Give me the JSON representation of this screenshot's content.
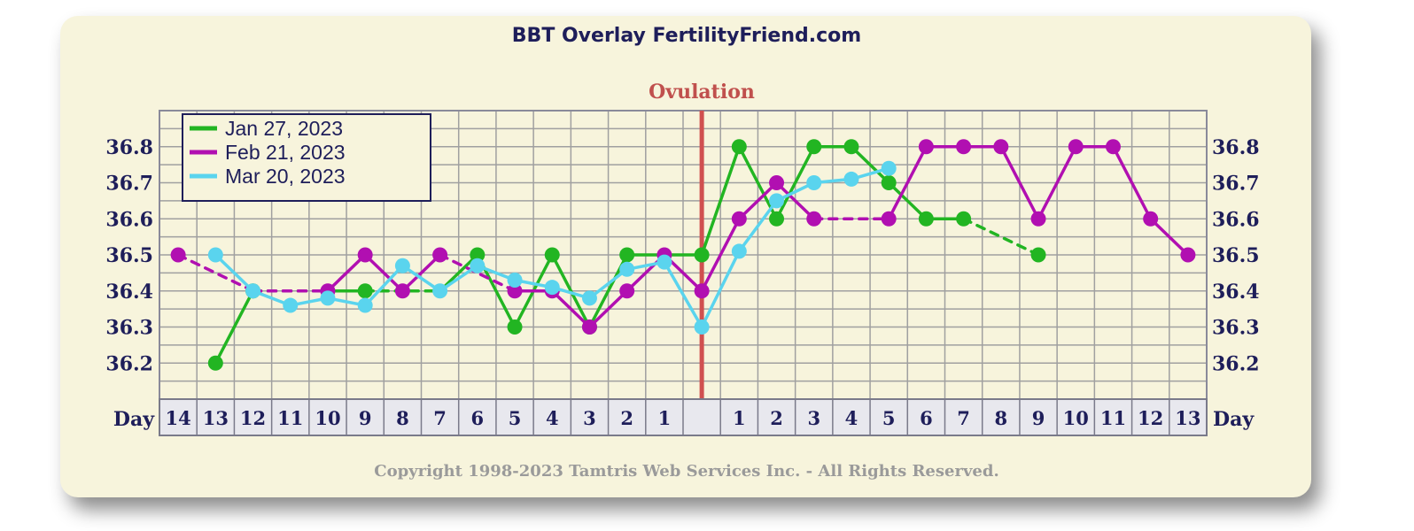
{
  "chart_data": {
    "type": "line",
    "title": "BBT Overlay FertilityFriend.com",
    "annotation": "Ovulation",
    "copyright": "Copyright 1998-2023 Tamtris Web Services Inc. - All Rights Reserved.",
    "ylim": [
      36.1,
      36.9
    ],
    "y_ticks": [
      "36.2",
      "36.3",
      "36.4",
      "36.5",
      "36.6",
      "36.7",
      "36.8"
    ],
    "day_axis_label": "Day",
    "day_labels": [
      "14",
      "13",
      "12",
      "11",
      "10",
      "9",
      "8",
      "7",
      "6",
      "5",
      "4",
      "3",
      "2",
      "1",
      "",
      "1",
      "2",
      "3",
      "4",
      "5",
      "6",
      "7",
      "8",
      "9",
      "10",
      "11",
      "12",
      "13"
    ],
    "ovulation_index": 14,
    "grid": true,
    "legend_position": "top-left",
    "series": [
      {
        "name": "Jan 27, 2023",
        "color": "#22b522",
        "values": [
          null,
          36.2,
          36.4,
          null,
          36.4,
          36.4,
          null,
          36.4,
          36.5,
          36.3,
          36.5,
          36.3,
          36.5,
          36.5,
          36.5,
          36.8,
          36.6,
          36.8,
          36.8,
          36.7,
          36.6,
          36.6,
          null,
          36.5,
          null,
          null,
          null,
          null
        ],
        "markers": [
          false,
          true,
          true,
          false,
          false,
          true,
          false,
          false,
          true,
          true,
          true,
          true,
          true,
          false,
          true,
          true,
          true,
          true,
          true,
          true,
          true,
          true,
          false,
          true,
          false,
          false,
          false,
          false
        ]
      },
      {
        "name": "Feb 21, 2023",
        "color": "#b10fb1",
        "values": [
          36.5,
          null,
          36.4,
          null,
          36.4,
          36.5,
          36.4,
          36.5,
          null,
          36.4,
          36.4,
          36.3,
          36.4,
          36.5,
          36.4,
          36.6,
          36.7,
          36.6,
          null,
          36.6,
          36.8,
          36.8,
          36.8,
          36.6,
          36.8,
          36.8,
          36.6,
          36.5
        ],
        "markers": [
          true,
          false,
          false,
          false,
          true,
          true,
          true,
          true,
          false,
          true,
          true,
          true,
          true,
          true,
          true,
          true,
          true,
          true,
          false,
          true,
          true,
          true,
          true,
          true,
          true,
          true,
          true,
          true
        ]
      },
      {
        "name": "Mar 20, 2023",
        "color": "#5ad4ee",
        "values": [
          null,
          36.5,
          36.4,
          36.36,
          36.38,
          36.36,
          36.47,
          36.4,
          36.47,
          36.43,
          36.41,
          36.38,
          36.46,
          36.48,
          36.3,
          36.51,
          36.65,
          36.7,
          36.71,
          36.74,
          null,
          null,
          null,
          null,
          null,
          null,
          null,
          null
        ],
        "markers": [
          false,
          true,
          true,
          true,
          true,
          true,
          true,
          true,
          true,
          true,
          true,
          true,
          true,
          true,
          true,
          true,
          true,
          true,
          true,
          true,
          false,
          false,
          false,
          false,
          false,
          false,
          false,
          false
        ]
      }
    ]
  }
}
